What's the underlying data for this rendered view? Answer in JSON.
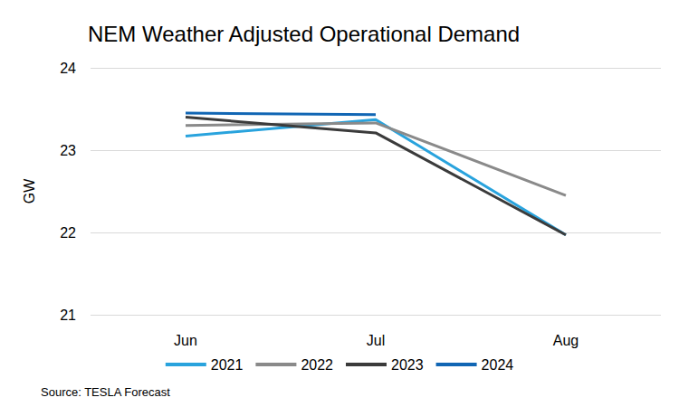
{
  "chart_data": {
    "type": "line",
    "title": "NEM Weather Adjusted Operational Demand",
    "y_label": "GW",
    "source": "Source: TESLA Forecast",
    "categories": [
      "Jun",
      "Jul",
      "Aug"
    ],
    "series": [
      {
        "name": "2021",
        "color": "#29a3dd",
        "values": [
          23.17,
          23.37,
          21.97
        ]
      },
      {
        "name": "2022",
        "color": "#8a8a8a",
        "values": [
          23.3,
          23.33,
          22.45
        ]
      },
      {
        "name": "2023",
        "color": "#3b3b3b",
        "values": [
          23.4,
          23.21,
          21.97
        ]
      },
      {
        "name": "2024",
        "color": "#1166b4",
        "values": [
          23.45,
          23.43,
          null
        ]
      }
    ],
    "ylim": [
      21,
      24
    ],
    "yticks": [
      21,
      22,
      23,
      24
    ],
    "grid": true,
    "legend": "bottom"
  }
}
